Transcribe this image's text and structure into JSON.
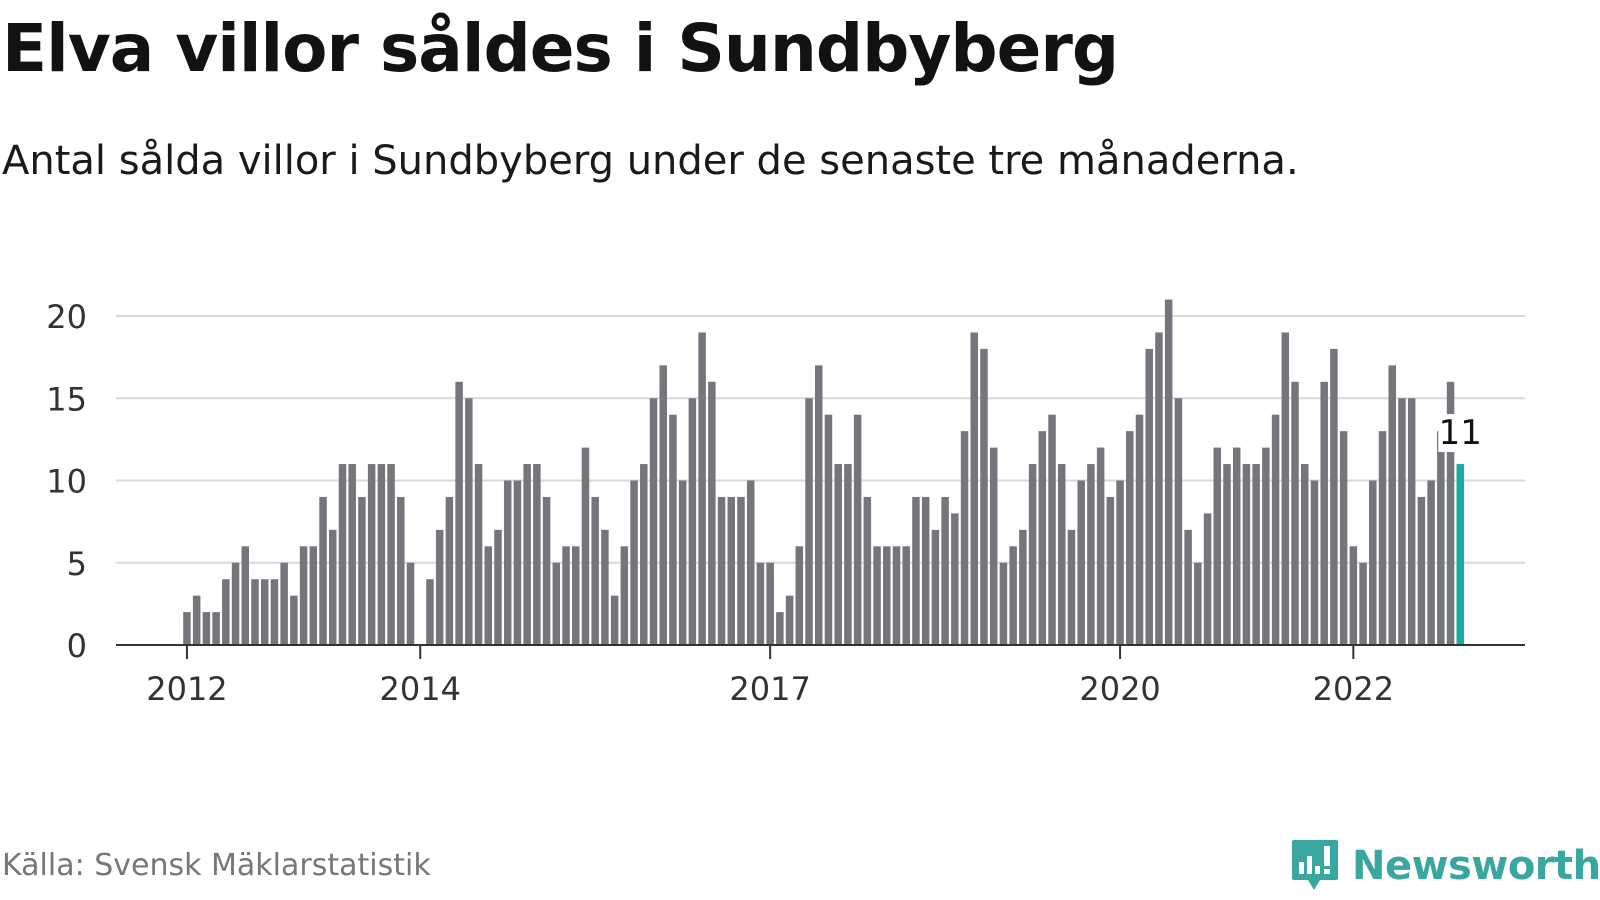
{
  "title": "Elva villor såldes i Sundbyberg",
  "subtitle": "Antal sålda villor i Sundbyberg under de senaste tre månaderna.",
  "source": "Källa: Svensk Mäklarstatistik",
  "brand": "Newsworthy",
  "colors": {
    "bar": "#75757c",
    "highlight": "#1aaaa0",
    "grid": "#d8d8d8",
    "axis": "#333333",
    "brand": "#3aa6a0"
  },
  "chart_data": {
    "type": "bar",
    "ylim": [
      0,
      21
    ],
    "y_ticks": [
      0,
      5,
      10,
      15,
      20
    ],
    "x_tick_labels": [
      "2012",
      "2014",
      "2017",
      "2020",
      "2022"
    ],
    "x_tick_months": [
      "2012-01",
      "2014-01",
      "2017-01",
      "2020-01",
      "2022-01"
    ],
    "first_month": "2011-01",
    "highlight_label": "11",
    "values": [
      0,
      0,
      0,
      0,
      0,
      0,
      0,
      0,
      0,
      0,
      0,
      0,
      2,
      3,
      2,
      2,
      4,
      5,
      6,
      4,
      4,
      4,
      5,
      3,
      6,
      6,
      9,
      7,
      11,
      11,
      9,
      11,
      11,
      11,
      9,
      5,
      0,
      4,
      7,
      9,
      16,
      15,
      11,
      6,
      7,
      10,
      10,
      11,
      11,
      9,
      5,
      6,
      6,
      12,
      9,
      7,
      3,
      6,
      10,
      11,
      15,
      17,
      14,
      10,
      15,
      19,
      16,
      9,
      9,
      9,
      10,
      5,
      5,
      2,
      3,
      6,
      15,
      17,
      14,
      11,
      11,
      14,
      9,
      6,
      6,
      6,
      6,
      9,
      9,
      7,
      9,
      8,
      13,
      19,
      18,
      12,
      5,
      6,
      7,
      11,
      13,
      14,
      11,
      7,
      10,
      11,
      12,
      9,
      10,
      13,
      14,
      18,
      19,
      21,
      15,
      7,
      5,
      8,
      12,
      11,
      12,
      11,
      11,
      12,
      14,
      19,
      16,
      11,
      10,
      16,
      18,
      13,
      6,
      5,
      10,
      13,
      17,
      15,
      15,
      9,
      10,
      13,
      16,
      11
    ]
  }
}
